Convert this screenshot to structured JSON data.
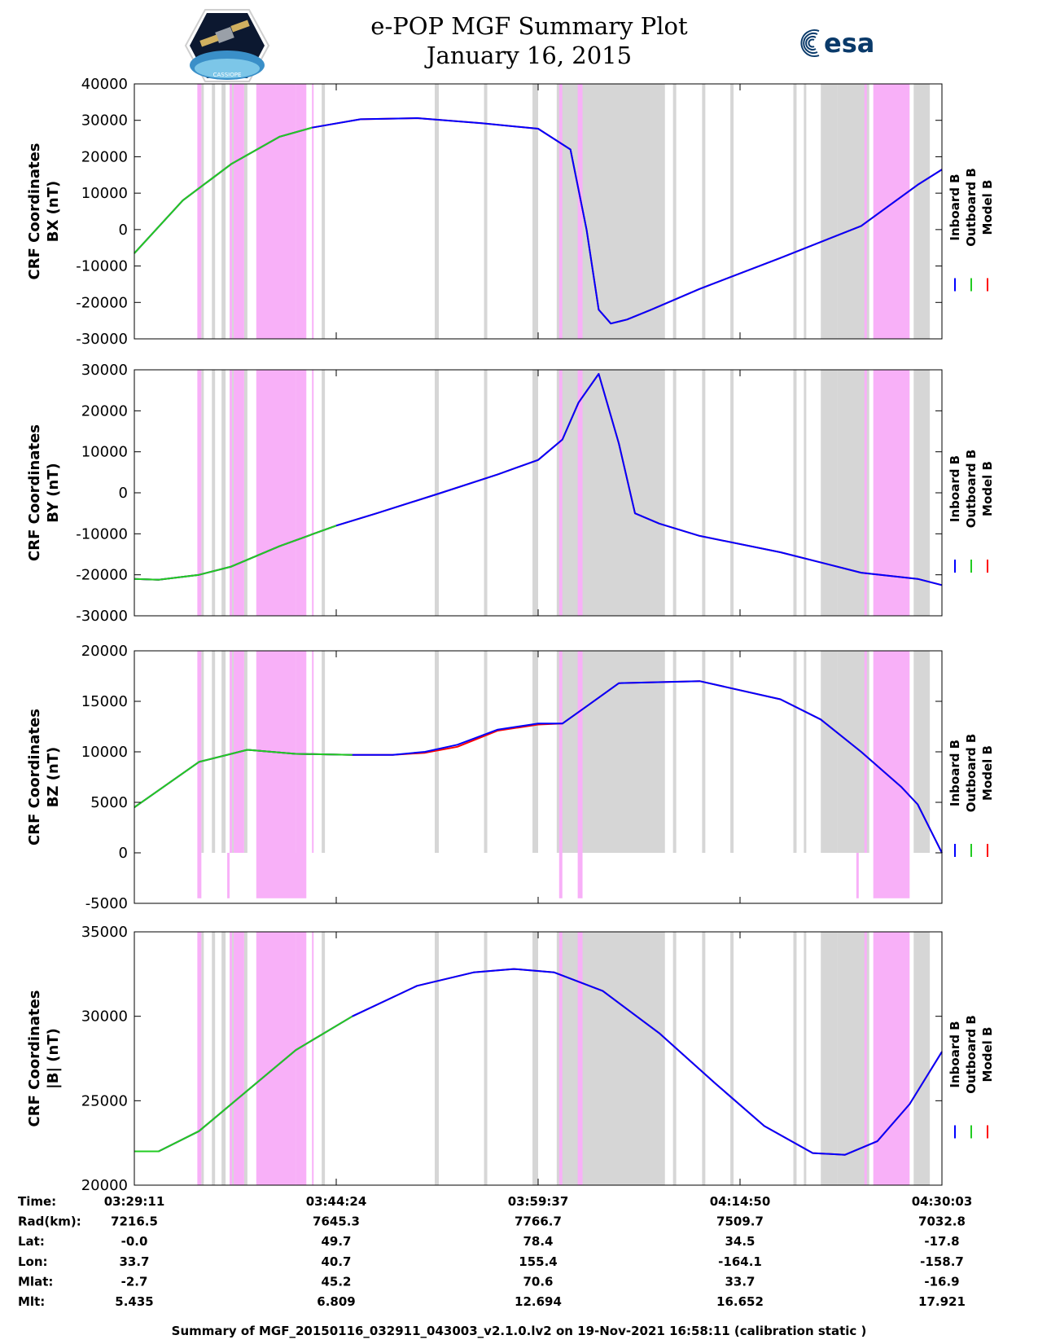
{
  "header": {
    "title": "e-POP MGF Summary Plot",
    "date": "January 16, 2015",
    "agency_logo_text": "esa",
    "mission_logo_text": "CASSIOPE"
  },
  "colors": {
    "inboard": "#0000ff",
    "outboard": "#22cc22",
    "model": "#ff0000",
    "gray_band": "#d6d6d6",
    "pink_band": "#f8b0f8"
  },
  "legend": [
    "Inboard B",
    "Outboard B",
    "Model B"
  ],
  "chart_data": [
    {
      "type": "line",
      "ylabel": [
        "CRF Coordinates",
        "BX (nT)"
      ],
      "ylim": [
        -30000,
        40000
      ],
      "yticks": [
        -30000,
        -20000,
        -10000,
        0,
        10000,
        20000,
        30000,
        40000
      ],
      "x": [
        0,
        0.06,
        0.12,
        0.18,
        0.22,
        0.28,
        0.35,
        0.43,
        0.5,
        0.54,
        0.56,
        0.575,
        0.59,
        0.61,
        0.64,
        0.7,
        0.8,
        0.9,
        0.97,
        1.0
      ],
      "series": [
        {
          "name": "Inboard B",
          "values": [
            -6500,
            8000,
            18000,
            25500,
            28000,
            30300,
            30600,
            29200,
            27700,
            22000,
            0,
            -22000,
            -25800,
            -24700,
            -22000,
            -16300,
            -7800,
            1000,
            12300,
            16500
          ]
        },
        {
          "name": "Outboard B",
          "values": [
            -6500,
            8000,
            18000,
            25500,
            28000,
            null,
            null,
            null,
            null,
            null,
            null,
            null,
            null,
            null,
            null,
            null,
            null,
            null,
            null,
            null
          ]
        },
        {
          "name": "Model B",
          "values": [
            -6500,
            8000,
            18000,
            25500,
            28000,
            30300,
            30600,
            29200,
            27700,
            22000,
            0,
            -22000,
            -25800,
            -24700,
            -22000,
            -16300,
            -7800,
            1000,
            12300,
            16500
          ]
        }
      ]
    },
    {
      "type": "line",
      "ylabel": [
        "CRF Coordinates",
        "BY (nT)"
      ],
      "ylim": [
        -30000,
        30000
      ],
      "yticks": [
        -30000,
        -20000,
        -10000,
        0,
        10000,
        20000,
        30000
      ],
      "x": [
        0,
        0.03,
        0.08,
        0.12,
        0.18,
        0.25,
        0.3,
        0.38,
        0.45,
        0.5,
        0.53,
        0.55,
        0.575,
        0.6,
        0.62,
        0.65,
        0.7,
        0.8,
        0.9,
        0.97,
        1.0
      ],
      "series": [
        {
          "name": "Inboard B",
          "values": [
            -21000,
            -21200,
            -20000,
            -18000,
            -13000,
            -8000,
            -5000,
            0,
            4500,
            8000,
            13000,
            22000,
            29000,
            12000,
            -5000,
            -7500,
            -10500,
            -14500,
            -19500,
            -21000,
            -22500
          ]
        },
        {
          "name": "Outboard B",
          "values": [
            -21000,
            -21200,
            -20000,
            -18000,
            -13000,
            -8000,
            null,
            null,
            null,
            null,
            null,
            null,
            null,
            null,
            null,
            null,
            null,
            null,
            null,
            null,
            null
          ]
        },
        {
          "name": "Model B",
          "values": [
            -21000,
            -21200,
            -20000,
            -18000,
            -13000,
            -8000,
            -5000,
            0,
            4500,
            8000,
            13000,
            22000,
            29000,
            12000,
            -5000,
            -7500,
            -10500,
            -14500,
            -19500,
            -21000,
            -22500
          ]
        }
      ]
    },
    {
      "type": "line",
      "ylabel": [
        "CRF Coordinates",
        "BZ (nT)"
      ],
      "ylim": [
        -5000,
        20000
      ],
      "yticks": [
        -5000,
        0,
        5000,
        10000,
        15000,
        20000
      ],
      "x": [
        0,
        0.08,
        0.14,
        0.2,
        0.27,
        0.32,
        0.36,
        0.4,
        0.45,
        0.5,
        0.53,
        0.56,
        0.6,
        0.7,
        0.8,
        0.85,
        0.9,
        0.95,
        0.97,
        1.0
      ],
      "series": [
        {
          "name": "Inboard B",
          "values": [
            4500,
            9000,
            10200,
            9800,
            9700,
            9700,
            10000,
            10700,
            12200,
            12800,
            12800,
            14500,
            16800,
            17000,
            15200,
            13200,
            10000,
            6500,
            4800,
            0
          ]
        },
        {
          "name": "Outboard B",
          "values": [
            4500,
            9000,
            10200,
            9800,
            9700,
            null,
            null,
            null,
            null,
            null,
            null,
            null,
            null,
            null,
            null,
            null,
            null,
            null,
            null,
            null
          ]
        },
        {
          "name": "Model B",
          "values": [
            4500,
            9000,
            10200,
            9800,
            9700,
            9700,
            9900,
            10500,
            12100,
            12700,
            12800,
            14500,
            16800,
            17000,
            15200,
            13200,
            10000,
            6500,
            4800,
            0
          ]
        }
      ]
    },
    {
      "type": "line",
      "ylabel": [
        "CRF Coordinates",
        "|B| (nT)"
      ],
      "ylim": [
        20000,
        35000
      ],
      "yticks": [
        20000,
        25000,
        30000,
        35000
      ],
      "x": [
        0,
        0.03,
        0.08,
        0.14,
        0.2,
        0.27,
        0.35,
        0.42,
        0.47,
        0.52,
        0.58,
        0.65,
        0.72,
        0.78,
        0.84,
        0.88,
        0.92,
        0.96,
        1.0
      ],
      "series": [
        {
          "name": "Inboard B",
          "values": [
            22000,
            22000,
            23200,
            25600,
            28000,
            30000,
            31800,
            32600,
            32800,
            32600,
            31500,
            29000,
            26000,
            23500,
            21900,
            21800,
            22600,
            24800,
            27900
          ]
        },
        {
          "name": "Outboard B",
          "values": [
            22000,
            22000,
            23200,
            25600,
            28000,
            30000,
            null,
            null,
            null,
            null,
            null,
            null,
            null,
            null,
            null,
            null,
            null,
            null,
            null
          ]
        },
        {
          "name": "Model B",
          "values": [
            22000,
            22000,
            23200,
            25600,
            28000,
            30000,
            31800,
            32600,
            32800,
            32600,
            31500,
            29000,
            26000,
            23500,
            21900,
            21800,
            22600,
            24800,
            27900
          ]
        }
      ]
    }
  ],
  "bands": {
    "gray": [
      [
        0.083,
        0.086
      ],
      [
        0.096,
        0.1
      ],
      [
        0.108,
        0.113
      ],
      [
        0.121,
        0.125
      ],
      [
        0.136,
        0.14
      ],
      [
        0.232,
        0.236
      ],
      [
        0.372,
        0.377
      ],
      [
        0.433,
        0.437
      ],
      [
        0.493,
        0.5
      ],
      [
        0.523,
        0.56
      ],
      [
        0.56,
        0.657
      ],
      [
        0.667,
        0.671
      ],
      [
        0.703,
        0.707
      ],
      [
        0.738,
        0.742
      ],
      [
        0.816,
        0.82
      ],
      [
        0.829,
        0.832
      ],
      [
        0.85,
        0.87
      ],
      [
        0.87,
        0.905
      ],
      [
        0.905,
        0.91
      ],
      [
        0.965,
        0.985
      ]
    ],
    "pink": [
      [
        0.078,
        0.083
      ],
      [
        0.118,
        0.121
      ],
      [
        0.123,
        0.136
      ],
      [
        0.151,
        0.2
      ],
      [
        0.2,
        0.213
      ],
      [
        0.22,
        0.222
      ],
      [
        0.526,
        0.53
      ],
      [
        0.549,
        0.555
      ],
      [
        0.904,
        0.907
      ],
      [
        0.915,
        0.96
      ]
    ]
  },
  "bz_below_bands": [
    [
      0.078,
      0.083
    ],
    [
      0.115,
      0.118
    ],
    [
      0.151,
      0.213
    ],
    [
      0.526,
      0.53
    ],
    [
      0.549,
      0.555
    ],
    [
      0.894,
      0.897
    ],
    [
      0.915,
      0.96
    ]
  ],
  "time_table": {
    "row_labels": [
      "Time:",
      "Rad(km):",
      "Lat:",
      "Lon:",
      "Mlat:",
      "Mlt:"
    ],
    "columns": [
      [
        "03:29:11",
        "7216.5",
        "-0.0",
        "33.7",
        "-2.7",
        "5.435"
      ],
      [
        "03:44:24",
        "7645.3",
        "49.7",
        "40.7",
        "45.2",
        "6.809"
      ],
      [
        "03:59:37",
        "7766.7",
        "78.4",
        "155.4",
        "70.6",
        "12.694"
      ],
      [
        "04:14:50",
        "7509.7",
        "34.5",
        "-164.1",
        "33.7",
        "16.652"
      ],
      [
        "04:30:03",
        "7032.8",
        "-17.8",
        "-158.7",
        "-16.9",
        "17.921"
      ]
    ]
  },
  "footer": "Summary of MGF_20150116_032911_043003_v2.1.0.lv2 on 19-Nov-2021 16:58:11 (calibration static )"
}
